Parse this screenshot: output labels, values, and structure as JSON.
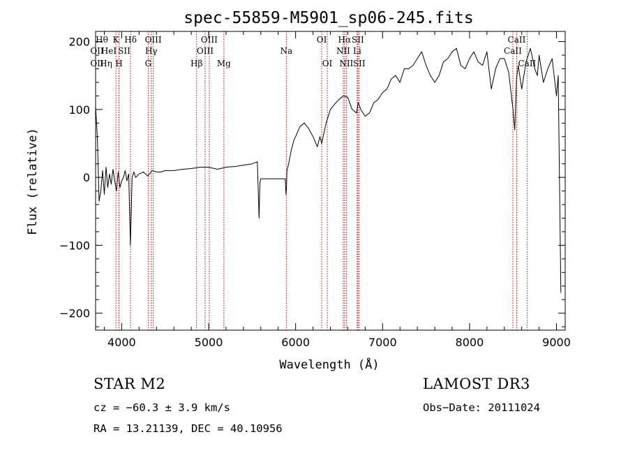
{
  "chart_data": {
    "type": "line",
    "title": "spec-55859-M5901_sp06-245.fits",
    "xlabel": "Wavelength (Å)",
    "ylabel": "Flux (relative)",
    "xlim": [
      3700,
      9100
    ],
    "ylim": [
      -225,
      215
    ],
    "xticks": [
      4000,
      5000,
      6000,
      7000,
      8000,
      9000
    ],
    "yticks": [
      -200,
      -100,
      0,
      100,
      200
    ],
    "grid": false,
    "series": [
      {
        "name": "flux",
        "x": [
          3700,
          3720,
          3740,
          3760,
          3780,
          3800,
          3820,
          3840,
          3860,
          3880,
          3900,
          3920,
          3940,
          3960,
          3980,
          4000,
          4020,
          4040,
          4060,
          4080,
          4100,
          4120,
          4140,
          4160,
          4200,
          4250,
          4300,
          4350,
          4400,
          4450,
          4500,
          4600,
          4700,
          4800,
          4900,
          5000,
          5100,
          5200,
          5300,
          5400,
          5500,
          5560,
          5580,
          5590,
          5600,
          5700,
          5800,
          5880,
          5890,
          5895,
          5900,
          5920,
          5950,
          5980,
          6000,
          6050,
          6100,
          6150,
          6200,
          6250,
          6280,
          6300,
          6350,
          6400,
          6450,
          6500,
          6550,
          6600,
          6650,
          6700,
          6720,
          6750,
          6800,
          6850,
          6900,
          6950,
          7000,
          7050,
          7100,
          7150,
          7200,
          7250,
          7300,
          7350,
          7400,
          7450,
          7500,
          7550,
          7600,
          7650,
          7700,
          7750,
          7800,
          7850,
          7900,
          7950,
          8000,
          8050,
          8100,
          8150,
          8200,
          8250,
          8300,
          8350,
          8400,
          8450,
          8500,
          8520,
          8540,
          8560,
          8600,
          8650,
          8700,
          8750,
          8780,
          8800,
          8850,
          8900,
          8950,
          9000,
          9020,
          9050
        ],
        "y": [
          105,
          60,
          -35,
          -20,
          10,
          -25,
          15,
          -15,
          5,
          -10,
          12,
          -5,
          -20,
          8,
          -15,
          -5,
          0,
          10,
          -5,
          5,
          -100,
          0,
          8,
          0,
          5,
          8,
          2,
          10,
          8,
          8,
          10,
          10,
          12,
          13,
          15,
          15,
          12,
          15,
          16,
          18,
          20,
          23,
          -60,
          -8,
          -2,
          -2,
          -2,
          -2,
          -25,
          -15,
          10,
          20,
          40,
          55,
          60,
          75,
          80,
          72,
          60,
          45,
          60,
          50,
          80,
          100,
          108,
          115,
          120,
          118,
          100,
          95,
          110,
          100,
          90,
          95,
          110,
          115,
          125,
          130,
          145,
          150,
          140,
          160,
          160,
          165,
          175,
          185,
          165,
          150,
          140,
          150,
          170,
          175,
          185,
          190,
          165,
          160,
          175,
          185,
          170,
          165,
          185,
          130,
          160,
          175,
          175,
          155,
          100,
          70,
          145,
          165,
          130,
          170,
          190,
          160,
          150,
          180,
          140,
          160,
          175,
          120,
          150,
          -170
        ]
      }
    ],
    "lines": [
      {
        "name": "CaII K",
        "wavelength": 3934,
        "label": "K",
        "row": 1
      },
      {
        "name": "CaII H",
        "wavelength": 3969,
        "label": "H",
        "row": 3
      },
      {
        "name": "Hδ",
        "wavelength": 4102,
        "label": "Hδ",
        "row": 1
      },
      {
        "name": "Hγ",
        "wavelength": 4340,
        "label": "Hγ",
        "row": 2
      },
      {
        "name": "G",
        "wavelength": 4305,
        "label": "G",
        "row": 3
      },
      {
        "name": "OIII",
        "wavelength": 4363,
        "label": "OIII",
        "row": 1
      },
      {
        "name": "Hβ",
        "wavelength": 4861,
        "label": "Hβ",
        "row": 3
      },
      {
        "name": "OIII",
        "wavelength": 4959,
        "label": "OIII",
        "row": 2
      },
      {
        "name": "OIII",
        "wavelength": 5007,
        "label": "OIII",
        "row": 1
      },
      {
        "name": "Mg",
        "wavelength": 5175,
        "label": "Mg",
        "row": 3
      },
      {
        "name": "Na",
        "wavelength": 5893,
        "label": "Na",
        "row": 2
      },
      {
        "name": "OI",
        "wavelength": 6300,
        "label": "OI",
        "row": 1
      },
      {
        "name": "OI",
        "wavelength": 6364,
        "label": "OI",
        "row": 3
      },
      {
        "name": "NII",
        "wavelength": 6548,
        "label": "NII",
        "row": 2
      },
      {
        "name": "Hα",
        "wavelength": 6563,
        "label": "Hα",
        "row": 1
      },
      {
        "name": "NII",
        "wavelength": 6583,
        "label": "NII",
        "row": 3
      },
      {
        "name": "Li",
        "wavelength": 6708,
        "label": "Li",
        "row": 2
      },
      {
        "name": "SII",
        "wavelength": 6716,
        "label": "SII",
        "row": 1
      },
      {
        "name": "SII",
        "wavelength": 6731,
        "label": "SII",
        "row": 3
      },
      {
        "name": "CaII",
        "wavelength": 8498,
        "label": "CaII",
        "row": 2
      },
      {
        "name": "CaII",
        "wavelength": 8542,
        "label": "CaII",
        "row": 1
      },
      {
        "name": "CaII",
        "wavelength": 8662,
        "label": "CaII",
        "row": 3
      }
    ],
    "crowded_labels": [
      {
        "text": "Hθ",
        "row": 1
      },
      {
        "text": "OII",
        "row": 2
      },
      {
        "text": "HeI",
        "row": 2
      },
      {
        "text": "SII",
        "row": 2
      },
      {
        "text": "OII",
        "row": 3
      },
      {
        "text": "Hη",
        "row": 3
      }
    ]
  },
  "info": {
    "object_class": "STAR    M2",
    "survey": "LAMOST DR3",
    "cz": "cz = −60.3 ± 3.9 km/s",
    "obs_date": "Obs−Date: 20111024",
    "radec": "RA =  13.21139, DEC =  40.10956"
  }
}
